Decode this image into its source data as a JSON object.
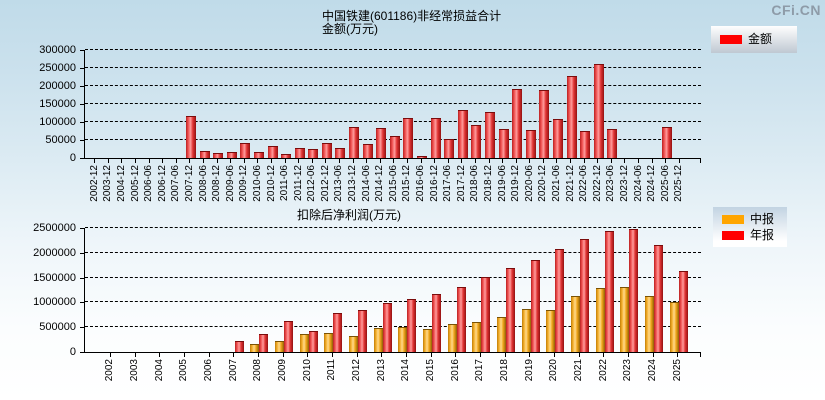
{
  "watermark": "CFi.CN",
  "top_chart": {
    "title": "中国铁建(601186)非经常损益合计",
    "subtitle": "金额(万元)",
    "legend": [
      {
        "label": "金额",
        "color": "#ff0000"
      }
    ]
  },
  "bottom_chart": {
    "title": "扣除后净利润(万元)",
    "legend": [
      {
        "label": "中报",
        "color": "#ffa500"
      },
      {
        "label": "年报",
        "color": "#ff0000"
      }
    ]
  },
  "chart_data": [
    {
      "type": "bar",
      "title": "中国铁建(601186)非经常损益合计",
      "subtitle": "金额(万元)",
      "ylabel": "金额(万元)",
      "ylim": [
        0,
        300000
      ],
      "yticks": [
        0,
        50000,
        100000,
        150000,
        200000,
        250000,
        300000
      ],
      "grid": "horizontal-dashed",
      "legend_position": "top-right",
      "categories": [
        "2002-12",
        "2003-12",
        "2004-12",
        "2005-12",
        "2006-06",
        "2006-12",
        "2007-06",
        "2007-12",
        "2008-06",
        "2008-12",
        "2009-06",
        "2009-12",
        "2010-06",
        "2010-12",
        "2011-06",
        "2011-12",
        "2012-06",
        "2012-12",
        "2013-06",
        "2013-12",
        "2014-06",
        "2014-12",
        "2015-06",
        "2015-12",
        "2016-06",
        "2016-12",
        "2017-06",
        "2017-12",
        "2018-06",
        "2018-12",
        "2019-06",
        "2019-12",
        "2020-06",
        "2020-12",
        "2021-06",
        "2021-12",
        "2022-06",
        "2022-12",
        "2023-06",
        "2023-12",
        "2024-06",
        "2024-12",
        "2025-06",
        "2025-12"
      ],
      "series": [
        {
          "name": "金额",
          "color": "#ff0000",
          "values": [
            null,
            null,
            null,
            null,
            null,
            null,
            null,
            113000,
            16000,
            10000,
            14000,
            39000,
            13000,
            31000,
            7000,
            24000,
            21000,
            38000,
            25000,
            83000,
            35000,
            80000,
            57000,
            108000,
            4000,
            108000,
            51000,
            131000,
            88000,
            125000,
            77000,
            189000,
            75000,
            185000,
            106000,
            226000,
            71000,
            258000,
            78000,
            null,
            null,
            null,
            84000,
            null
          ]
        }
      ]
    },
    {
      "type": "bar",
      "title": "扣除后净利润(万元)",
      "ylabel": "扣除后净利润(万元)",
      "ylim": [
        0,
        2500000
      ],
      "yticks": [
        0,
        500000,
        1000000,
        1500000,
        2000000,
        2500000
      ],
      "grid": "horizontal-dashed",
      "legend_position": "top-right",
      "categories": [
        "2002",
        "2003",
        "2004",
        "2005",
        "2006",
        "2007",
        "2008",
        "2009",
        "2010",
        "2011",
        "2012",
        "2013",
        "2014",
        "2015",
        "2016",
        "2017",
        "2018",
        "2019",
        "2020",
        "2021",
        "2022",
        "2023",
        "2024",
        "2025"
      ],
      "series": [
        {
          "name": "中报",
          "color": "#ffa500",
          "values": [
            null,
            null,
            null,
            null,
            null,
            null,
            145000,
            205000,
            335000,
            360000,
            295000,
            465000,
            485000,
            450000,
            550000,
            590000,
            695000,
            840000,
            835000,
            1110000,
            1275000,
            1285000,
            1115000,
            995000
          ]
        },
        {
          "name": "年报",
          "color": "#ff0000",
          "values": [
            null,
            null,
            null,
            null,
            null,
            205000,
            350000,
            615000,
            395000,
            765000,
            825000,
            965000,
            1040000,
            1150000,
            1300000,
            1490000,
            1680000,
            1845000,
            2065000,
            2250000,
            2420000,
            2470000,
            2140000,
            1610000
          ]
        }
      ]
    }
  ]
}
